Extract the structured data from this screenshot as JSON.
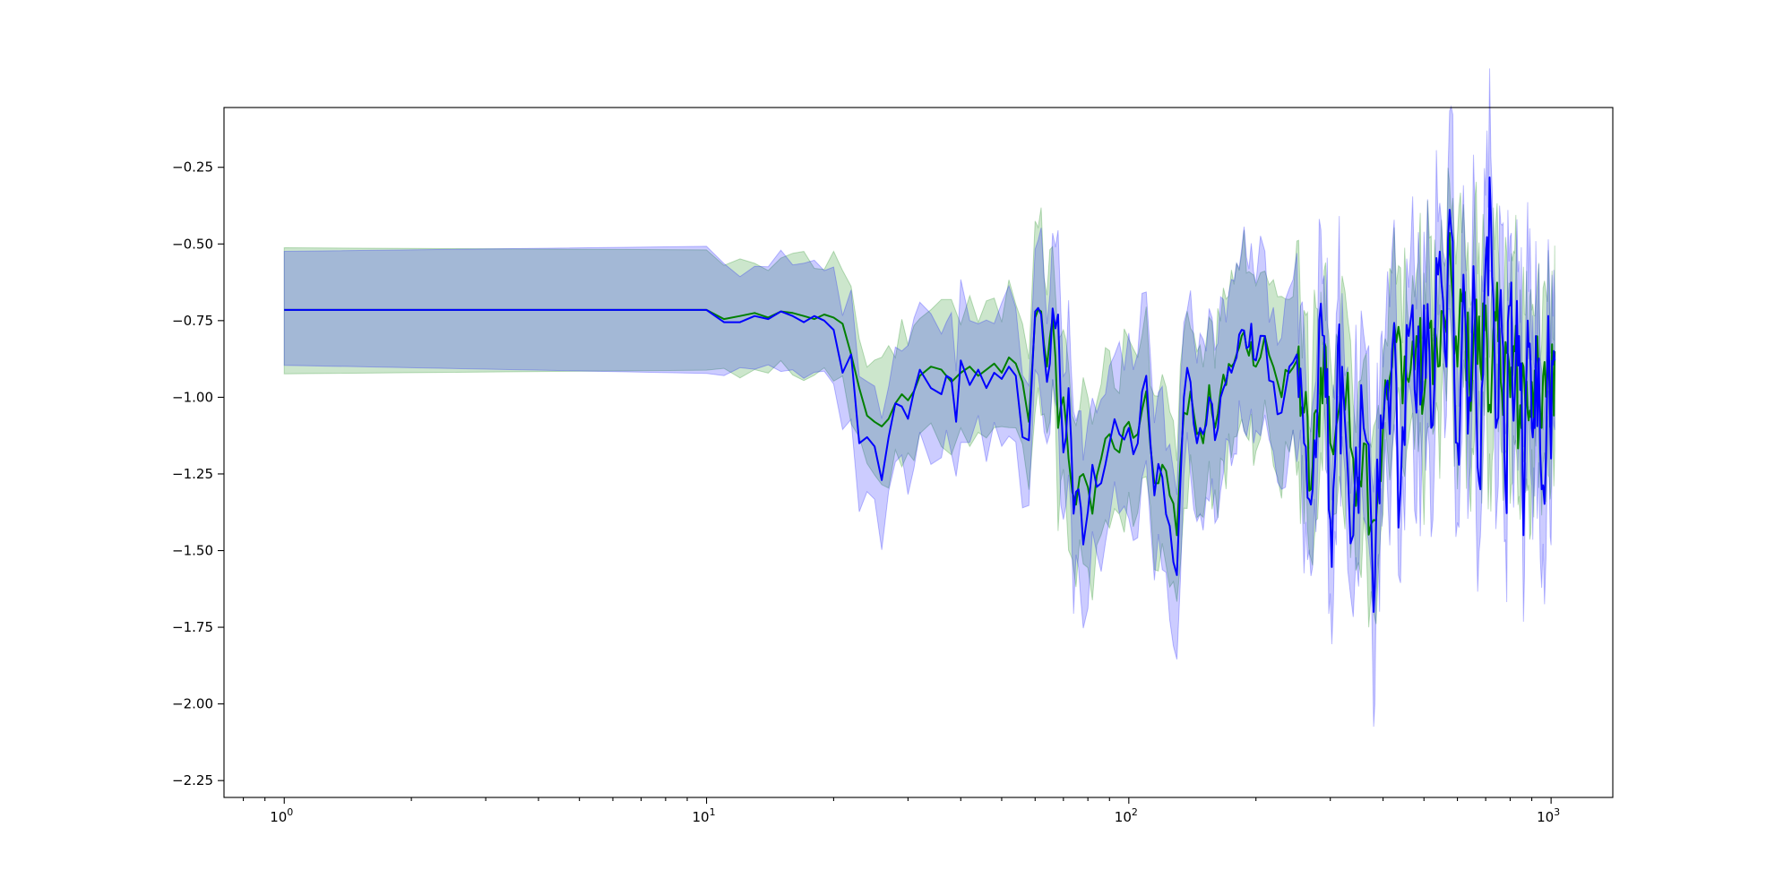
{
  "chart_data": {
    "type": "line",
    "title": "",
    "xlabel": "",
    "ylabel": "",
    "xscale": "log",
    "xlim": [
      0.72,
      1400
    ],
    "ylim": [
      -2.305,
      -0.055
    ],
    "grid": false,
    "legend": "none",
    "x_ticks": [
      {
        "value": 1,
        "base": "10",
        "exp": "0"
      },
      {
        "value": 10,
        "base": "10",
        "exp": "1"
      },
      {
        "value": 100,
        "base": "10",
        "exp": "2"
      },
      {
        "value": 1000,
        "base": "10",
        "exp": "3"
      }
    ],
    "y_ticks": [
      {
        "value": -0.25,
        "label": "−0.25"
      },
      {
        "value": -0.5,
        "label": "−0.50"
      },
      {
        "value": -0.75,
        "label": "−0.75"
      },
      {
        "value": -1.0,
        "label": "−1.00"
      },
      {
        "value": -1.25,
        "label": "−1.25"
      },
      {
        "value": -1.5,
        "label": "−1.50"
      },
      {
        "value": -1.75,
        "label": "−1.75"
      },
      {
        "value": -2.0,
        "label": "−2.00"
      },
      {
        "value": -2.25,
        "label": "−2.25"
      }
    ],
    "series": [
      {
        "color": "#008000",
        "band_color": "#008000",
        "points": [
          [
            1,
            -0.715
          ],
          [
            10,
            -0.715
          ],
          [
            11,
            -0.745
          ],
          [
            12,
            -0.735
          ],
          [
            13,
            -0.725
          ],
          [
            14,
            -0.74
          ],
          [
            15,
            -0.72
          ],
          [
            16,
            -0.725
          ],
          [
            17,
            -0.735
          ],
          [
            18,
            -0.745
          ],
          [
            19,
            -0.73
          ],
          [
            20,
            -0.74
          ],
          [
            21,
            -0.76
          ],
          [
            22,
            -0.86
          ],
          [
            23,
            -0.97
          ],
          [
            24,
            -1.06
          ],
          [
            25,
            -1.08
          ],
          [
            26,
            -1.095
          ],
          [
            27,
            -1.07
          ],
          [
            28,
            -1.02
          ],
          [
            29,
            -0.99
          ],
          [
            30,
            -1.01
          ],
          [
            31,
            -0.98
          ],
          [
            32,
            -0.93
          ],
          [
            34,
            -0.9
          ],
          [
            36,
            -0.91
          ],
          [
            38,
            -0.95
          ],
          [
            40,
            -0.92
          ],
          [
            42,
            -0.9
          ],
          [
            44,
            -0.93
          ],
          [
            46,
            -0.91
          ],
          [
            48,
            -0.89
          ],
          [
            50,
            -0.92
          ],
          [
            52,
            -0.87
          ],
          [
            54,
            -0.89
          ],
          [
            56,
            -0.95
          ],
          [
            58,
            -1.08
          ],
          [
            60,
            -0.74
          ],
          [
            62,
            -0.72
          ],
          [
            64,
            -0.9
          ],
          [
            66,
            -0.74
          ],
          [
            68,
            -1.1
          ],
          [
            70,
            -1.0
          ],
          [
            72,
            -1.2
          ],
          [
            75,
            -1.35
          ],
          [
            78,
            -1.25
          ],
          [
            82,
            -1.38
          ],
          [
            86,
            -1.2
          ],
          [
            90,
            -1.12
          ],
          [
            95,
            -1.18
          ],
          [
            100,
            -1.08
          ],
          [
            105,
            -1.12
          ],
          [
            110,
            -0.98
          ],
          [
            115,
            -1.28
          ],
          [
            120,
            -1.22
          ],
          [
            125,
            -1.32
          ],
          [
            130,
            -1.45
          ],
          [
            135,
            -1.05
          ],
          [
            140,
            -0.98
          ],
          [
            145,
            -1.12
          ],
          [
            150,
            -1.15
          ],
          [
            155,
            -0.96
          ],
          [
            160,
            -1.1
          ],
          [
            165,
            -0.98
          ],
          [
            170,
            -0.96
          ],
          [
            175,
            -0.9
          ],
          [
            180,
            -0.86
          ],
          [
            185,
            -0.8
          ],
          [
            190,
            -0.84
          ],
          [
            195,
            -0.82
          ],
          [
            200,
            -0.9
          ],
          [
            210,
            -0.8
          ],
          [
            220,
            -0.9
          ],
          [
            230,
            -1.0
          ],
          [
            240,
            -0.92
          ],
          [
            250,
            -0.88
          ],
          [
            260,
            -1.05
          ],
          [
            270,
            -1.3
          ],
          [
            280,
            -1.05
          ],
          [
            290,
            -0.82
          ],
          [
            300,
            -1.15
          ],
          [
            320,
            -0.95
          ],
          [
            340,
            -1.2
          ],
          [
            360,
            -1.15
          ],
          [
            380,
            -1.4
          ],
          [
            400,
            -1.1
          ],
          [
            420,
            -0.9
          ],
          [
            440,
            -0.82
          ],
          [
            460,
            -0.95
          ],
          [
            480,
            -0.8
          ],
          [
            500,
            -1.0
          ],
          [
            520,
            -0.75
          ],
          [
            540,
            -0.9
          ],
          [
            560,
            -0.75
          ],
          [
            580,
            -0.6
          ],
          [
            600,
            -0.9
          ],
          [
            620,
            -0.65
          ],
          [
            640,
            -0.95
          ],
          [
            660,
            -0.75
          ],
          [
            680,
            -0.9
          ],
          [
            700,
            -0.7
          ],
          [
            720,
            -1.05
          ],
          [
            740,
            -0.75
          ],
          [
            760,
            -0.95
          ],
          [
            780,
            -0.82
          ],
          [
            800,
            -1.0
          ],
          [
            820,
            -0.85
          ],
          [
            840,
            -1.1
          ],
          [
            860,
            -0.9
          ],
          [
            880,
            -1.05
          ],
          [
            900,
            -0.95
          ],
          [
            920,
            -0.92
          ],
          [
            950,
            -1.1
          ],
          [
            980,
            -0.88
          ],
          [
            1000,
            -1.0
          ],
          [
            1020,
            -0.85
          ]
        ]
      },
      {
        "color": "#0000ff",
        "band_color": "#0000ff",
        "points": [
          [
            1,
            -0.715
          ],
          [
            10,
            -0.715
          ],
          [
            11,
            -0.755
          ],
          [
            12,
            -0.755
          ],
          [
            13,
            -0.735
          ],
          [
            14,
            -0.745
          ],
          [
            15,
            -0.72
          ],
          [
            16,
            -0.735
          ],
          [
            17,
            -0.755
          ],
          [
            18,
            -0.735
          ],
          [
            19,
            -0.75
          ],
          [
            20,
            -0.78
          ],
          [
            21,
            -0.92
          ],
          [
            22,
            -0.86
          ],
          [
            23,
            -1.15
          ],
          [
            24,
            -1.13
          ],
          [
            25,
            -1.16
          ],
          [
            26,
            -1.27
          ],
          [
            27,
            -1.13
          ],
          [
            28,
            -1.02
          ],
          [
            29,
            -1.03
          ],
          [
            30,
            -1.07
          ],
          [
            31,
            -0.98
          ],
          [
            32,
            -0.91
          ],
          [
            34,
            -0.97
          ],
          [
            36,
            -0.99
          ],
          [
            37,
            -0.93
          ],
          [
            38,
            -0.94
          ],
          [
            39,
            -1.08
          ],
          [
            40,
            -0.88
          ],
          [
            42,
            -0.96
          ],
          [
            44,
            -0.91
          ],
          [
            46,
            -0.97
          ],
          [
            48,
            -0.92
          ],
          [
            50,
            -0.94
          ],
          [
            52,
            -0.9
          ],
          [
            54,
            -0.93
          ],
          [
            56,
            -1.13
          ],
          [
            58,
            -1.14
          ],
          [
            60,
            -0.72
          ],
          [
            62,
            -0.73
          ],
          [
            64,
            -0.95
          ],
          [
            66,
            -0.71
          ],
          [
            68,
            -0.73
          ],
          [
            70,
            -1.18
          ],
          [
            72,
            -0.97
          ],
          [
            74,
            -1.38
          ],
          [
            76,
            -1.3
          ],
          [
            78,
            -1.48
          ],
          [
            82,
            -1.22
          ],
          [
            86,
            -1.28
          ],
          [
            90,
            -1.15
          ],
          [
            95,
            -1.12
          ],
          [
            100,
            -1.1
          ],
          [
            105,
            -1.15
          ],
          [
            110,
            -0.93
          ],
          [
            115,
            -1.32
          ],
          [
            120,
            -1.26
          ],
          [
            125,
            -1.42
          ],
          [
            130,
            -1.58
          ],
          [
            135,
            -1.0
          ],
          [
            140,
            -0.95
          ],
          [
            145,
            -1.15
          ],
          [
            150,
            -1.12
          ],
          [
            155,
            -1.0
          ],
          [
            160,
            -1.14
          ],
          [
            165,
            -1.0
          ],
          [
            170,
            -0.95
          ],
          [
            175,
            -0.92
          ],
          [
            180,
            -0.87
          ],
          [
            185,
            -0.78
          ],
          [
            190,
            -0.84
          ],
          [
            195,
            -0.76
          ],
          [
            200,
            -0.88
          ],
          [
            210,
            -0.8
          ],
          [
            220,
            -0.95
          ],
          [
            230,
            -1.05
          ],
          [
            240,
            -0.9
          ],
          [
            250,
            -0.86
          ],
          [
            260,
            -1.15
          ],
          [
            270,
            -1.35
          ],
          [
            280,
            -1.02
          ],
          [
            290,
            -0.8
          ],
          [
            300,
            -1.4
          ],
          [
            310,
            -1.1
          ],
          [
            320,
            -0.9
          ],
          [
            340,
            -1.45
          ],
          [
            360,
            -1.1
          ],
          [
            380,
            -1.7
          ],
          [
            390,
            -1.3
          ],
          [
            400,
            -1.1
          ],
          [
            420,
            -0.85
          ],
          [
            440,
            -1.3
          ],
          [
            460,
            -0.8
          ],
          [
            480,
            -1.05
          ],
          [
            500,
            -0.7
          ],
          [
            520,
            -1.1
          ],
          [
            540,
            -0.6
          ],
          [
            560,
            -0.85
          ],
          [
            580,
            -0.45
          ],
          [
            600,
            -1.15
          ],
          [
            620,
            -0.6
          ],
          [
            640,
            -1.0
          ],
          [
            660,
            -0.7
          ],
          [
            680,
            -1.3
          ],
          [
            700,
            -0.55
          ],
          [
            720,
            -0.4
          ],
          [
            740,
            -1.1
          ],
          [
            760,
            -0.65
          ],
          [
            780,
            -1.3
          ],
          [
            800,
            -0.7
          ],
          [
            820,
            -1.0
          ],
          [
            840,
            -0.8
          ],
          [
            860,
            -1.45
          ],
          [
            880,
            -0.75
          ],
          [
            900,
            -1.1
          ],
          [
            920,
            -0.8
          ],
          [
            950,
            -1.3
          ],
          [
            980,
            -0.9
          ],
          [
            1000,
            -1.2
          ],
          [
            1020,
            -0.88
          ]
        ]
      }
    ]
  }
}
